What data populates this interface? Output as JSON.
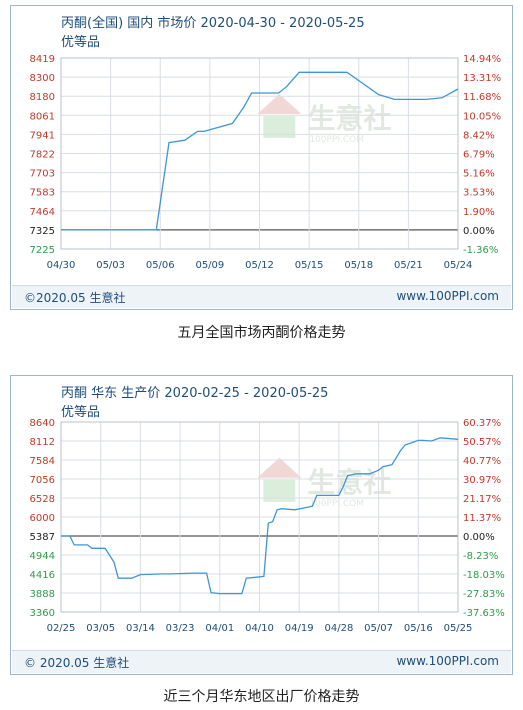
{
  "colors": {
    "line": "#3f95d6",
    "grid": "#d9dee4",
    "axis_left": "#c0392b",
    "axis_right_pos": "#c0392b",
    "axis_right_neg": "#2e9b4a",
    "text": "#1f4e79",
    "watermark": "#c8d6c8"
  },
  "watermark": {
    "brand": "生意社",
    "url": "100PPI.COM"
  },
  "charts": [
    {
      "title": "丙酮(全国) 国内 市场价 2020-04-30 - 2020-05-25",
      "subtitle": "优等品",
      "footer_left": "©2020.05 生意社",
      "footer_right": "www.100PPI.com",
      "caption": "五月全国市场丙酮价格走势"
    },
    {
      "title": "丙酮 华东 生产价 2020-02-25 - 2020-05-25",
      "subtitle": "优等品",
      "footer_left": "© 2020.05 生意社",
      "footer_right": "www.100PPI.com",
      "caption": "近三个月华东地区出厂价格走势"
    }
  ],
  "chart_data": [
    {
      "type": "line",
      "title": "丙酮(全国) 国内 市场价 2020-04-30 - 2020-05-25",
      "subtitle": "优等品",
      "x_ticks": [
        "04/30",
        "05/03",
        "05/06",
        "05/09",
        "05/12",
        "05/15",
        "05/18",
        "05/21",
        "05/24"
      ],
      "x_range": [
        0,
        25
      ],
      "y_ticks": [
        "8419",
        "8300",
        "8180",
        "8061",
        "7941",
        "7822",
        "7703",
        "7583",
        "7464",
        "7325",
        "7225"
      ],
      "ylim": [
        7225,
        8419
      ],
      "baseline_y": "7325",
      "y2_ticks": [
        "14.94%",
        "13.31%",
        "11.68%",
        "10.05%",
        "8.42%",
        "6.79%",
        "5.16%",
        "3.53%",
        "1.90%",
        "0.00%",
        "-1.36%"
      ],
      "grid": true,
      "series": [
        {
          "x": [
            0,
            6,
            6.8,
            7.8,
            8.6,
            9,
            10.8,
            11.5,
            12,
            13.2,
            13.7,
            14.2,
            15,
            18,
            18.3,
            20,
            21,
            23,
            24,
            25
          ],
          "values": [
            7325,
            7325,
            7890,
            7905,
            7960,
            7960,
            8010,
            8110,
            8200,
            8200,
            8200,
            8240,
            8330,
            8330,
            8310,
            8190,
            8160,
            8160,
            8170,
            8225
          ]
        }
      ]
    },
    {
      "type": "line",
      "title": "丙酮 华东 生产价 2020-02-25 - 2020-05-25",
      "subtitle": "优等品",
      "x_ticks": [
        "02/25",
        "03/05",
        "03/14",
        "03/23",
        "04/01",
        "04/10",
        "04/19",
        "04/28",
        "05/07",
        "05/16",
        "05/25"
      ],
      "x_range": [
        0,
        90
      ],
      "y_ticks": [
        "8640",
        "8112",
        "7584",
        "7056",
        "6528",
        "6000",
        "5387",
        "4944",
        "4416",
        "3888",
        "3360"
      ],
      "ylim": [
        3360,
        8640
      ],
      "baseline_y": "5387",
      "y2_ticks": [
        "60.37%",
        "50.57%",
        "40.77%",
        "30.97%",
        "21.17%",
        "11.37%",
        "0.00%",
        "-8.23%",
        "-18.03%",
        "-27.83%",
        "-37.63%"
      ],
      "grid": true,
      "series": [
        {
          "x": [
            0,
            2,
            3,
            6,
            7,
            10,
            12,
            13,
            14,
            16,
            18,
            23,
            25,
            30,
            33,
            34,
            36,
            39,
            41,
            42,
            46,
            47,
            48,
            49,
            50,
            53,
            57,
            58,
            63,
            64,
            65,
            67,
            70,
            72,
            73,
            75,
            77,
            78,
            81,
            82,
            84,
            86,
            90
          ],
          "values": [
            5387,
            5387,
            5180,
            5180,
            5100,
            5100,
            4750,
            4300,
            4300,
            4300,
            4400,
            4420,
            4420,
            4440,
            4440,
            3900,
            3870,
            3870,
            3870,
            4300,
            4350,
            5800,
            5850,
            6200,
            6230,
            6200,
            6300,
            6600,
            6600,
            6850,
            7150,
            7200,
            7200,
            7300,
            7400,
            7450,
            7850,
            8000,
            8130,
            8130,
            8112,
            8200,
            8160
          ]
        }
      ]
    }
  ]
}
